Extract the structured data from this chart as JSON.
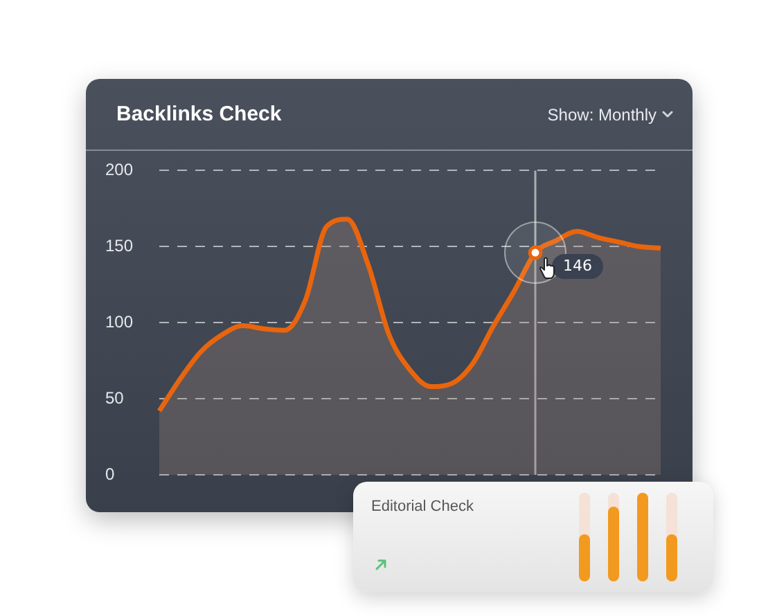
{
  "chart_data": {
    "type": "area",
    "title": "Backlinks Check",
    "categories": [
      null,
      null,
      null,
      null,
      null,
      null,
      null,
      null,
      null,
      null,
      null,
      null,
      null,
      null,
      null,
      null,
      null,
      null,
      null,
      null,
      null,
      null,
      null,
      null,
      null
    ],
    "values": [
      42,
      63,
      81,
      92,
      98,
      96,
      95,
      115,
      163,
      168,
      138,
      92,
      69,
      58,
      60,
      73,
      98,
      121,
      146,
      154,
      160,
      156,
      153,
      150,
      149
    ],
    "color": "#e8650e",
    "ylim": [
      0,
      200
    ],
    "yticks": [
      0,
      50,
      100,
      150,
      200
    ],
    "grid": "y",
    "line_style": "solid",
    "value_labels": [
      null,
      null,
      null,
      null,
      null,
      null,
      null,
      null,
      null,
      null,
      null,
      null,
      null,
      null,
      null,
      null,
      null,
      null,
      "146",
      null,
      null,
      null,
      null,
      null,
      null
    ],
    "annotations": [
      "Show: Monthly",
      "Editorial Check"
    ]
  }
}
